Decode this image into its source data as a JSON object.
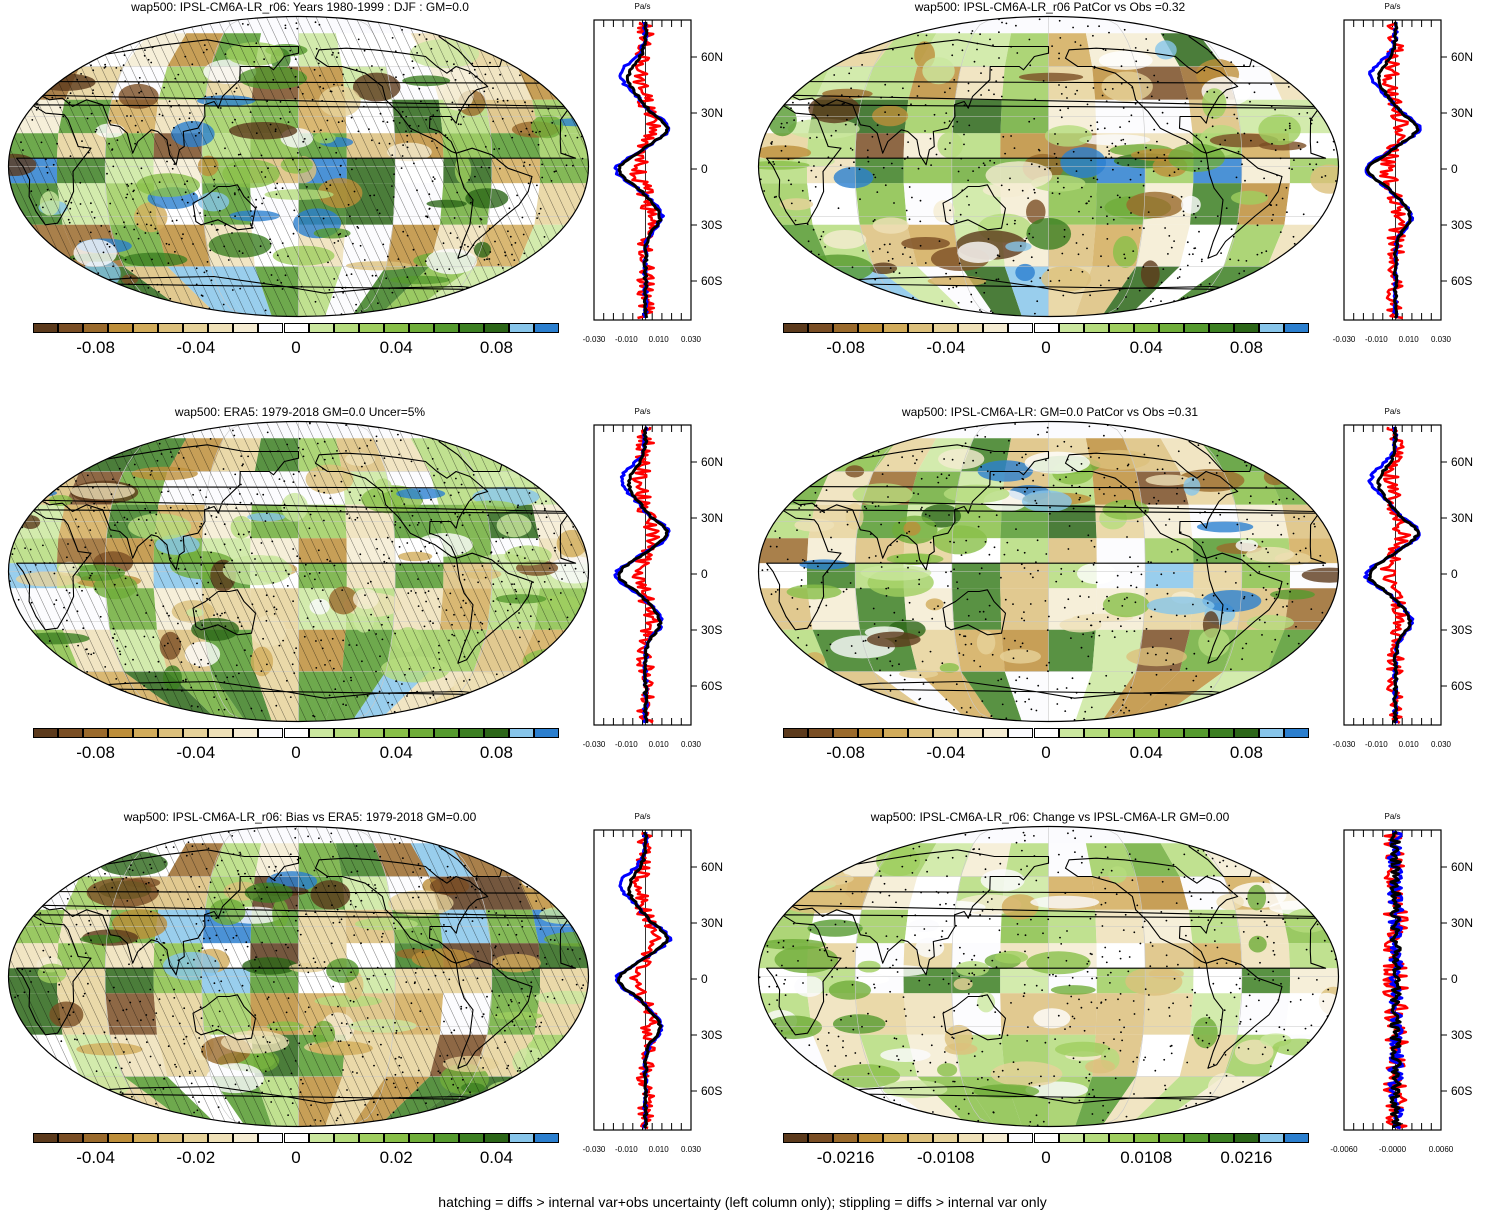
{
  "colorbar_colors": [
    "#5c3a1c",
    "#7a4e24",
    "#9a6a2c",
    "#bd8e3a",
    "#d2ac5b",
    "#dcc07c",
    "#e6d29a",
    "#efe1b8",
    "#f5ecd2",
    "#fbfbfe",
    "#ffffff",
    "#cbe79f",
    "#b5dc7d",
    "#9fce5f",
    "#88bf48",
    "#6fad39",
    "#559a2e",
    "#3c7f22",
    "#2c6618",
    "#87c5ea",
    "#2b7fcf"
  ],
  "colors": {
    "zonal_model": "#000000",
    "zonal_obs": "#0000ff",
    "zonal_diff": "#ff0000"
  },
  "panels": [
    {
      "id": "p1",
      "title": "wap500: IPSL-CM6A-LR_r06: Years 1980-1999 : DJF : GM=0.0",
      "colorbar_labels": [
        "-0.08",
        "-0.04",
        "0",
        "0.04",
        "0.08"
      ],
      "zonal": {
        "unit": "Pa/s",
        "x_ticks": [
          "-0.030",
          "-0.010",
          "0.010",
          "0.030"
        ],
        "lat_labels": [
          "60N",
          "30N",
          "0",
          "30S",
          "60S"
        ]
      },
      "hatched": true
    },
    {
      "id": "p2",
      "title": "wap500: IPSL-CM6A-LR_r06 PatCor vs Obs =0.32",
      "colorbar_labels": [
        "-0.08",
        "-0.04",
        "0",
        "0.04",
        "0.08"
      ],
      "zonal": {
        "unit": "Pa/s",
        "x_ticks": [
          "-0.030",
          "-0.010",
          "0.010",
          "0.030"
        ],
        "lat_labels": [
          "60N",
          "30N",
          "0",
          "30S",
          "60S"
        ]
      },
      "hatched": false
    },
    {
      "id": "p3",
      "title": "wap500: ERA5: 1979-2018 GM=0.0 Uncer=5%",
      "colorbar_labels": [
        "-0.08",
        "-0.04",
        "0",
        "0.04",
        "0.08"
      ],
      "zonal": {
        "unit": "Pa/s",
        "x_ticks": [
          "-0.030",
          "-0.010",
          "0.010",
          "0.030"
        ],
        "lat_labels": [
          "60N",
          "30N",
          "0",
          "30S",
          "60S"
        ]
      },
      "hatched": true
    },
    {
      "id": "p4",
      "title": "wap500: IPSL-CM6A-LR: GM=0.0 PatCor vs Obs =0.31",
      "colorbar_labels": [
        "-0.08",
        "-0.04",
        "0",
        "0.04",
        "0.08"
      ],
      "zonal": {
        "unit": "Pa/s",
        "x_ticks": [
          "-0.030",
          "-0.010",
          "0.010",
          "0.030"
        ],
        "lat_labels": [
          "60N",
          "30N",
          "0",
          "30S",
          "60S"
        ]
      },
      "hatched": false
    },
    {
      "id": "p5",
      "title": "wap500: IPSL-CM6A-LR_r06: Bias vs ERA5: 1979-2018 GM=0.00",
      "colorbar_labels": [
        "-0.04",
        "-0.02",
        "0",
        "0.02",
        "0.04"
      ],
      "zonal": {
        "unit": "Pa/s",
        "x_ticks": [
          "-0.030",
          "-0.010",
          "0.010",
          "0.030"
        ],
        "lat_labels": [
          "60N",
          "30N",
          "0",
          "30S",
          "60S"
        ]
      },
      "hatched": true
    },
    {
      "id": "p6",
      "title": "wap500: IPSL-CM6A-LR_r06: Change vs IPSL-CM6A-LR GM=0.00",
      "colorbar_labels": [
        "-0.0216",
        "-0.0108",
        "0",
        "0.0108",
        "0.0216"
      ],
      "zonal": {
        "unit": "Pa/s",
        "x_ticks": [
          "-0.0060",
          "-0.0000",
          "0.0060"
        ],
        "lat_labels": [
          "60N",
          "30N",
          "0",
          "30S",
          "60S"
        ]
      },
      "hatched": false
    }
  ],
  "footnote": "hatching = diffs > internal var+obs uncertainty (left column only); stippling = diffs > internal var only"
}
